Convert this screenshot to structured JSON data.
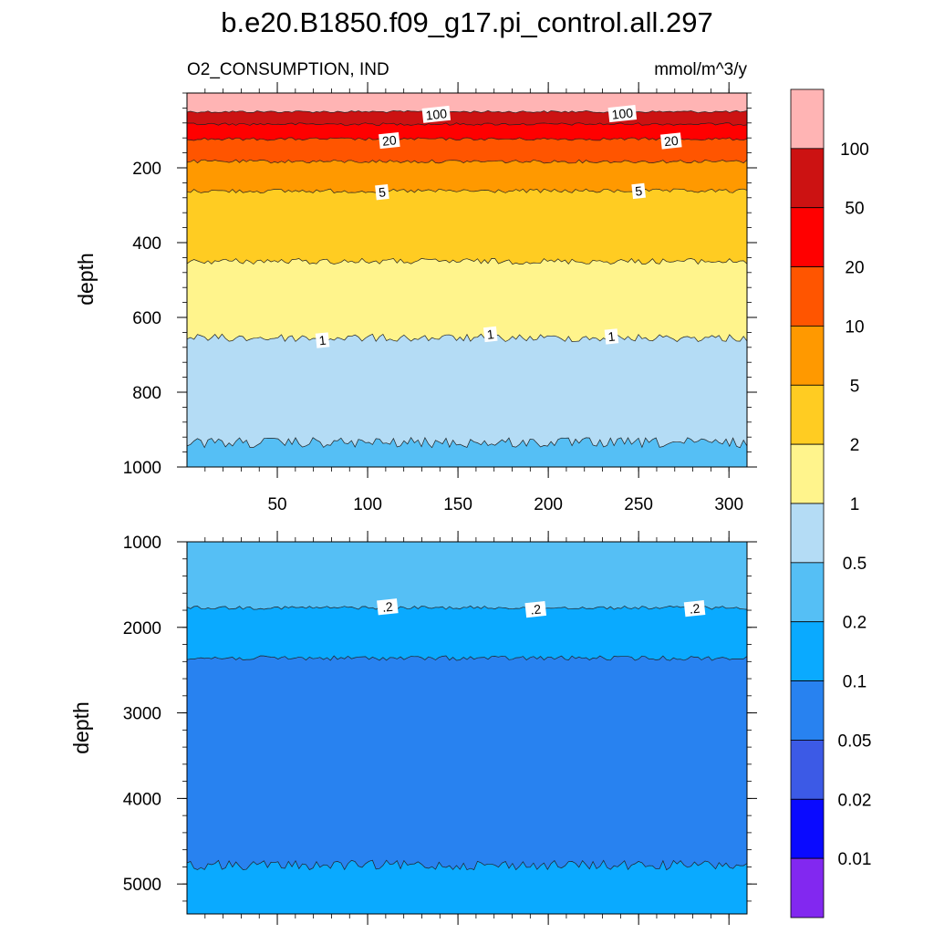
{
  "title": "b.e20.B1850.f09_g17.pi_control.all.297",
  "chart_data": [
    {
      "type": "contour",
      "panel": "upper",
      "subtitle_left": "O2_CONSUMPTION, IND",
      "subtitle_right": "mmol/m^3/y",
      "ylabel": "depth",
      "xlabel": "",
      "xlim": [
        0,
        310
      ],
      "ylim": [
        1000,
        0
      ],
      "x_ticks": [
        50,
        100,
        150,
        200,
        250,
        300
      ],
      "y_ticks": [
        200,
        400,
        600,
        800,
        1000
      ],
      "bands": [
        {
          "level_low": 100,
          "color": "#ffb4b4",
          "depth_top": 0,
          "depth_bottom": 50
        },
        {
          "level_low": 50,
          "color": "#cc1212",
          "depth_top": 50,
          "depth_bottom": 83
        },
        {
          "level_low": 20,
          "color": "#ff0000",
          "depth_top": 83,
          "depth_bottom": 123
        },
        {
          "level_low": 10,
          "color": "#ff5500",
          "depth_top": 123,
          "depth_bottom": 183
        },
        {
          "level_low": 5,
          "color": "#ff9900",
          "depth_top": 183,
          "depth_bottom": 262
        },
        {
          "level_low": 2,
          "color": "#ffcc22",
          "depth_top": 262,
          "depth_bottom": 450
        },
        {
          "level_low": 1,
          "color": "#fff48c",
          "depth_top": 450,
          "depth_bottom": 655
        },
        {
          "level_low": 0.5,
          "color": "#b4dcf5",
          "depth_top": 655,
          "depth_bottom": 935
        },
        {
          "level_low": 0.2,
          "color": "#55bff5",
          "depth_top": 935,
          "depth_bottom": 1000
        }
      ],
      "contour_labels": [
        {
          "text": "100",
          "x": 138,
          "depth": 57
        },
        {
          "text": "100",
          "x": 241,
          "depth": 55
        },
        {
          "text": "20",
          "x": 112,
          "depth": 127
        },
        {
          "text": "20",
          "x": 268,
          "depth": 128
        },
        {
          "text": "5",
          "x": 108,
          "depth": 265
        },
        {
          "text": "5",
          "x": 250,
          "depth": 262
        },
        {
          "text": "1",
          "x": 75,
          "depth": 661
        },
        {
          "text": "1",
          "x": 168,
          "depth": 645
        },
        {
          "text": "1",
          "x": 235,
          "depth": 651
        }
      ]
    },
    {
      "type": "contour",
      "panel": "lower",
      "ylabel": "depth",
      "xlabel": "",
      "xlim": [
        0,
        310
      ],
      "ylim": [
        5350,
        1000
      ],
      "x_ticks": [
        50,
        100,
        150,
        200,
        250,
        300
      ],
      "y_ticks": [
        1000,
        2000,
        3000,
        4000,
        5000
      ],
      "bands": [
        {
          "level_low": 0.2,
          "color": "#55bff5",
          "depth_top": 1000,
          "depth_bottom": 1770
        },
        {
          "level_low": 0.1,
          "color": "#0aaaff",
          "depth_top": 1770,
          "depth_bottom": 2360
        },
        {
          "level_low": 0.05,
          "color": "#2882f0",
          "depth_top": 2360,
          "depth_bottom": 4780
        },
        {
          "level_low": 0.1,
          "color": "#0aaaff",
          "depth_top": 4780,
          "depth_bottom": 5350
        }
      ],
      "contour_labels": [
        {
          "text": ".2",
          "x": 111,
          "depth": 1760
        },
        {
          "text": ".2",
          "x": 193,
          "depth": 1790
        },
        {
          "text": ".2",
          "x": 281,
          "depth": 1780
        }
      ]
    }
  ],
  "colorbar": {
    "colors": [
      "#ffb4b4",
      "#cc1212",
      "#ff0000",
      "#ff5500",
      "#ff9900",
      "#ffcc22",
      "#fff48c",
      "#b4dcf5",
      "#55bff5",
      "#0aaaff",
      "#2882f0",
      "#3c5ae6",
      "#0a0aff",
      "#8228f0"
    ],
    "labels": [
      "100",
      "50",
      "20",
      "10",
      "5",
      "2",
      "1",
      "0.5",
      "0.2",
      "0.1",
      "0.05",
      "0.02",
      "0.01"
    ]
  }
}
